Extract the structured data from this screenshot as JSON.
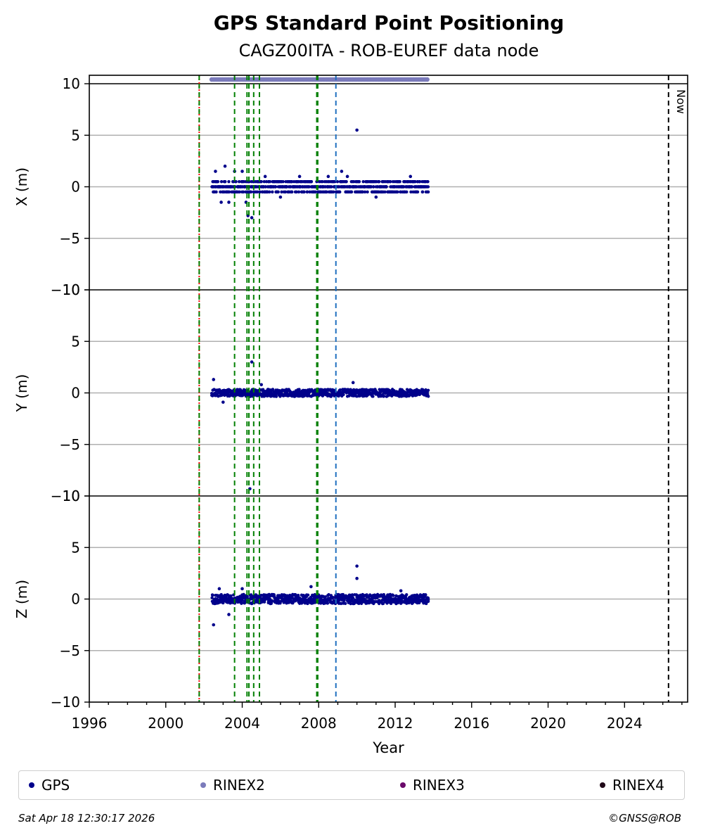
{
  "title": "GPS Standard Point Positioning",
  "subtitle": "CAGZ00ITA - ROB-EUREF data node",
  "legend": [
    {
      "label": "GPS",
      "color": "#00008b"
    },
    {
      "label": "RINEX2",
      "color": "#7b7bbb"
    },
    {
      "label": "RINEX3",
      "color": "#6a0a6a"
    },
    {
      "label": "RINEX4",
      "color": "#200818"
    }
  ],
  "footer": {
    "timestamp": "Sat Apr 18 12:30:17 2026",
    "credit": "©GNSS@ROB"
  },
  "chart_data": {
    "type": "scatter",
    "xlabel": "Year",
    "xlim": [
      1996,
      2027.3
    ],
    "xticks": [
      1996,
      2000,
      2004,
      2008,
      2012,
      2016,
      2020,
      2024
    ],
    "now_label": "Now",
    "now_year": 2026.3,
    "panels": [
      {
        "ylabel": "X (m)",
        "ylim": [
          -10,
          10
        ],
        "yticks": [
          "−10",
          "−5",
          "0",
          "5",
          "10"
        ],
        "band_half_width": 0.45,
        "spread_points": [
          {
            "x": 2002.6,
            "y": 1.5
          },
          {
            "x": 2002.9,
            "y": -1.5
          },
          {
            "x": 2003.1,
            "y": 2.0
          },
          {
            "x": 2003.3,
            "y": -1.5
          },
          {
            "x": 2003.6,
            "y": 1.5
          },
          {
            "x": 2004.0,
            "y": 1.5
          },
          {
            "x": 2004.2,
            "y": -1.5
          },
          {
            "x": 2004.5,
            "y": -3.0
          },
          {
            "x": 2004.3,
            "y": -2.8
          },
          {
            "x": 2005.2,
            "y": 1.0
          },
          {
            "x": 2006.0,
            "y": -1.0
          },
          {
            "x": 2007.0,
            "y": 1.0
          },
          {
            "x": 2008.5,
            "y": 1.0
          },
          {
            "x": 2009.2,
            "y": 1.5
          },
          {
            "x": 2009.5,
            "y": 1.0
          },
          {
            "x": 2011.0,
            "y": -1.0
          },
          {
            "x": 2012.8,
            "y": 1.0
          },
          {
            "x": 2010.0,
            "y": 5.5
          }
        ]
      },
      {
        "ylabel": "Y (m)",
        "ylim": [
          -10,
          10
        ],
        "yticks": [
          "−10",
          "−5",
          "0",
          "5",
          "10"
        ],
        "band_half_width": 0.35,
        "spread_points": [
          {
            "x": 2002.5,
            "y": 1.3
          },
          {
            "x": 2003.0,
            "y": -0.9
          },
          {
            "x": 2004.5,
            "y": 3.0
          },
          {
            "x": 2004.4,
            "y": -9.3
          },
          {
            "x": 2009.8,
            "y": 1.0
          },
          {
            "x": 2005.0,
            "y": 0.8
          }
        ]
      },
      {
        "ylabel": "Z (m)",
        "ylim": [
          -10,
          10
        ],
        "yticks": [
          "−10",
          "−5",
          "0",
          "5",
          "10"
        ],
        "band_half_width": 0.45,
        "spread_points": [
          {
            "x": 2002.5,
            "y": -2.5
          },
          {
            "x": 2002.8,
            "y": 1.0
          },
          {
            "x": 2003.3,
            "y": -1.5
          },
          {
            "x": 2004.0,
            "y": 1.0
          },
          {
            "x": 2007.6,
            "y": 1.2
          },
          {
            "x": 2010.0,
            "y": 3.2
          },
          {
            "x": 2010.0,
            "y": 2.0
          },
          {
            "x": 2012.3,
            "y": 0.8
          }
        ]
      }
    ],
    "gps_series_range": [
      2002.4,
      2013.7
    ],
    "rinex2_availability": [
      2002.4,
      2013.7
    ],
    "event_lines": [
      {
        "x": 2001.75,
        "color": "#ff0000",
        "style": "dotted"
      },
      {
        "x": 2001.75,
        "color": "#008000",
        "style": "dashed"
      },
      {
        "x": 2003.6,
        "color": "#008000",
        "style": "dashed"
      },
      {
        "x": 2004.25,
        "color": "#008000",
        "style": "dashed"
      },
      {
        "x": 2004.35,
        "color": "#008000",
        "style": "dashed"
      },
      {
        "x": 2004.6,
        "color": "#008000",
        "style": "dashed"
      },
      {
        "x": 2004.9,
        "color": "#008000",
        "style": "dashed"
      },
      {
        "x": 2007.9,
        "color": "#008000",
        "style": "dashed"
      },
      {
        "x": 2007.95,
        "color": "#008000",
        "style": "dashed"
      },
      {
        "x": 2008.9,
        "color": "#1f6fbf",
        "style": "dashed"
      },
      {
        "x": 2026.3,
        "color": "#000000",
        "style": "dashed"
      }
    ]
  }
}
